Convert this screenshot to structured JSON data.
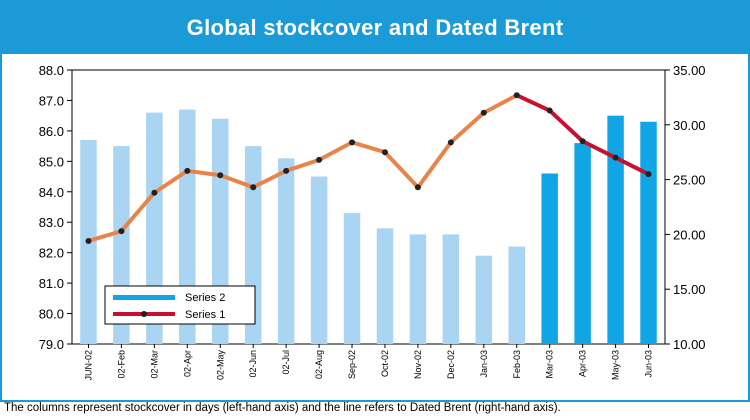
{
  "title": "Global stockcover and Dated Brent",
  "caption": "The columns represent stockcover in days (left-hand axis) and the line refers to Dated Brent (right-hand axis).",
  "colors": {
    "frame": "#1a9bd7",
    "bar_light": "#a9d4f2",
    "bar_dark": "#12a5e6",
    "line_early": "#e8844a",
    "line_late": "#c8102e",
    "marker": "#222222"
  },
  "chart_data": {
    "type": "bar",
    "categories": [
      "JUN-02",
      "02-Feb",
      "02-Mar",
      "02-Apr",
      "02-May",
      "02-Jun",
      "02-Jul",
      "02-Aug",
      "Sep-02",
      "Oct-02",
      "Nov-02",
      "Dec-02",
      "Jan-03",
      "Feb-03",
      "Mar-03",
      "Apr-03",
      "May-03",
      "Jun-03"
    ],
    "series": [
      {
        "name": "Series 2",
        "type": "bar",
        "axis": "left",
        "values": [
          85.7,
          85.5,
          86.6,
          86.7,
          86.4,
          85.5,
          85.1,
          84.5,
          83.3,
          82.8,
          82.6,
          82.6,
          81.9,
          82.2,
          84.6,
          85.6,
          86.5,
          86.3
        ],
        "highlighted_from_index": 14
      },
      {
        "name": "Series 1",
        "type": "line",
        "axis": "right",
        "values": [
          19.4,
          20.3,
          23.8,
          25.8,
          25.4,
          24.3,
          25.8,
          26.8,
          28.4,
          27.5,
          24.3,
          28.4,
          31.1,
          32.7,
          31.3,
          28.5,
          27.0,
          25.5
        ],
        "highlighted_from_index": 13
      }
    ],
    "y_left": {
      "min": 79,
      "max": 88,
      "ticks": [
        "79.0",
        "80.0",
        "81.0",
        "82.0",
        "83.0",
        "84.0",
        "85.0",
        "86.0",
        "87.0",
        "88.0"
      ]
    },
    "y_right": {
      "min": 10,
      "max": 35,
      "ticks": [
        "10.00",
        "15.00",
        "20.00",
        "25.00",
        "30.00",
        "35.00"
      ]
    },
    "legend": {
      "position": "bottom-left",
      "entries": [
        "Series 2",
        "Series 1"
      ]
    },
    "grid": false
  }
}
